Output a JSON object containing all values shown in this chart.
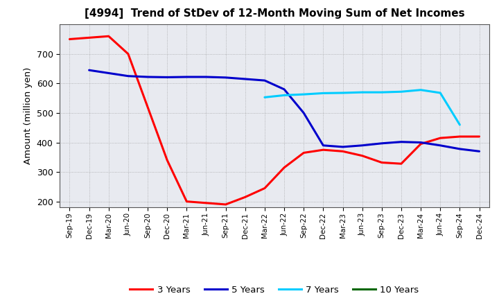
{
  "title": "[4994]  Trend of StDev of 12-Month Moving Sum of Net Incomes",
  "ylabel": "Amount (million yen)",
  "background_color": "#ffffff",
  "plot_bg_color": "#e8eaf0",
  "grid_color": "#888888",
  "ylim": [
    180,
    800
  ],
  "yticks": [
    200,
    300,
    400,
    500,
    600,
    700
  ],
  "x_labels": [
    "Sep-19",
    "Dec-19",
    "Mar-20",
    "Jun-20",
    "Sep-20",
    "Dec-20",
    "Mar-21",
    "Jun-21",
    "Sep-21",
    "Dec-21",
    "Mar-22",
    "Jun-22",
    "Sep-22",
    "Dec-22",
    "Mar-23",
    "Jun-23",
    "Sep-23",
    "Dec-23",
    "Mar-24",
    "Jun-24",
    "Sep-24",
    "Dec-24"
  ],
  "series": {
    "3 Years": {
      "color": "#ff0000",
      "values": [
        750,
        755,
        760,
        700,
        520,
        340,
        200,
        195,
        190,
        215,
        245,
        315,
        365,
        375,
        370,
        355,
        332,
        328,
        395,
        415,
        420,
        420
      ]
    },
    "5 Years": {
      "color": "#0000cc",
      "values": [
        null,
        645,
        635,
        625,
        622,
        621,
        622,
        622,
        620,
        615,
        610,
        580,
        500,
        390,
        385,
        390,
        397,
        402,
        400,
        390,
        378,
        370
      ]
    },
    "7 Years": {
      "color": "#00ccff",
      "values": [
        null,
        null,
        null,
        null,
        null,
        null,
        null,
        null,
        null,
        null,
        553,
        560,
        563,
        567,
        568,
        570,
        570,
        572,
        578,
        568,
        460,
        null
      ]
    },
    "10 Years": {
      "color": "#006600",
      "values": [
        null,
        null,
        null,
        null,
        null,
        null,
        null,
        null,
        null,
        null,
        null,
        null,
        null,
        null,
        null,
        null,
        null,
        null,
        null,
        null,
        null,
        null
      ]
    }
  },
  "legend_labels": [
    "3 Years",
    "5 Years",
    "7 Years",
    "10 Years"
  ],
  "legend_colors": [
    "#ff0000",
    "#0000cc",
    "#00ccff",
    "#006600"
  ]
}
